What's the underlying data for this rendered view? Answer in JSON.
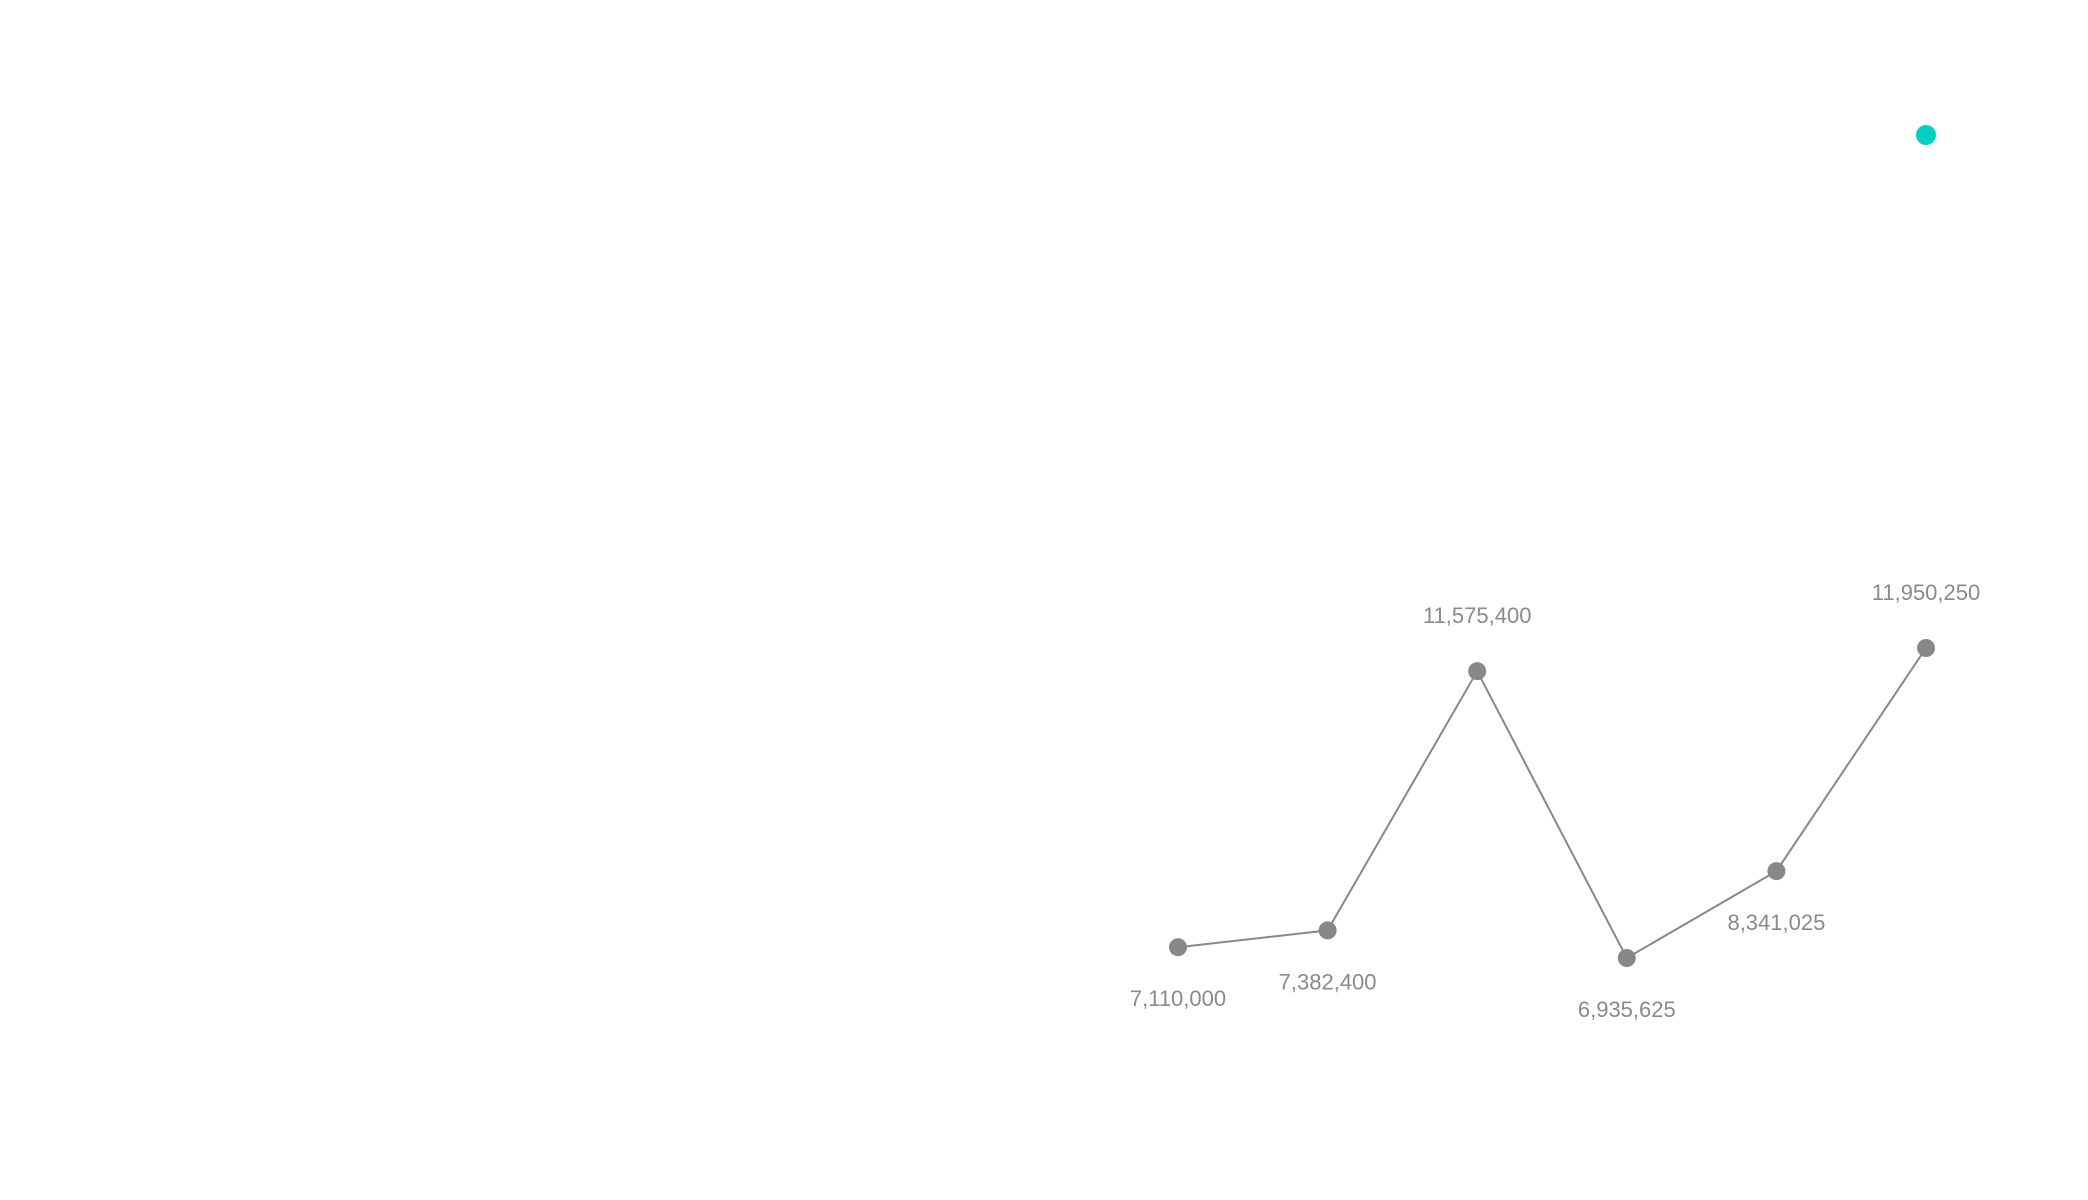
{
  "chart_data": {
    "type": "line",
    "title": "",
    "xlabel": "",
    "ylabel": "",
    "x": [
      1,
      2,
      3,
      4,
      5,
      6
    ],
    "ylim": [
      5000000,
      13000000
    ],
    "grid": false,
    "series": [
      {
        "name": "",
        "color": "#888888",
        "values": [
          7110000,
          7382400,
          11575400,
          6935625,
          8341025,
          11950250
        ],
        "labels": [
          "7,110,000",
          "7,382,400",
          "11,575,400",
          "6,935,625",
          "8,341,025",
          "11,950,250"
        ],
        "label_positions": [
          "below",
          "below",
          "above",
          "below",
          "below",
          "above"
        ]
      }
    ],
    "highlight_point": {
      "color": "#00cfc4"
    }
  }
}
